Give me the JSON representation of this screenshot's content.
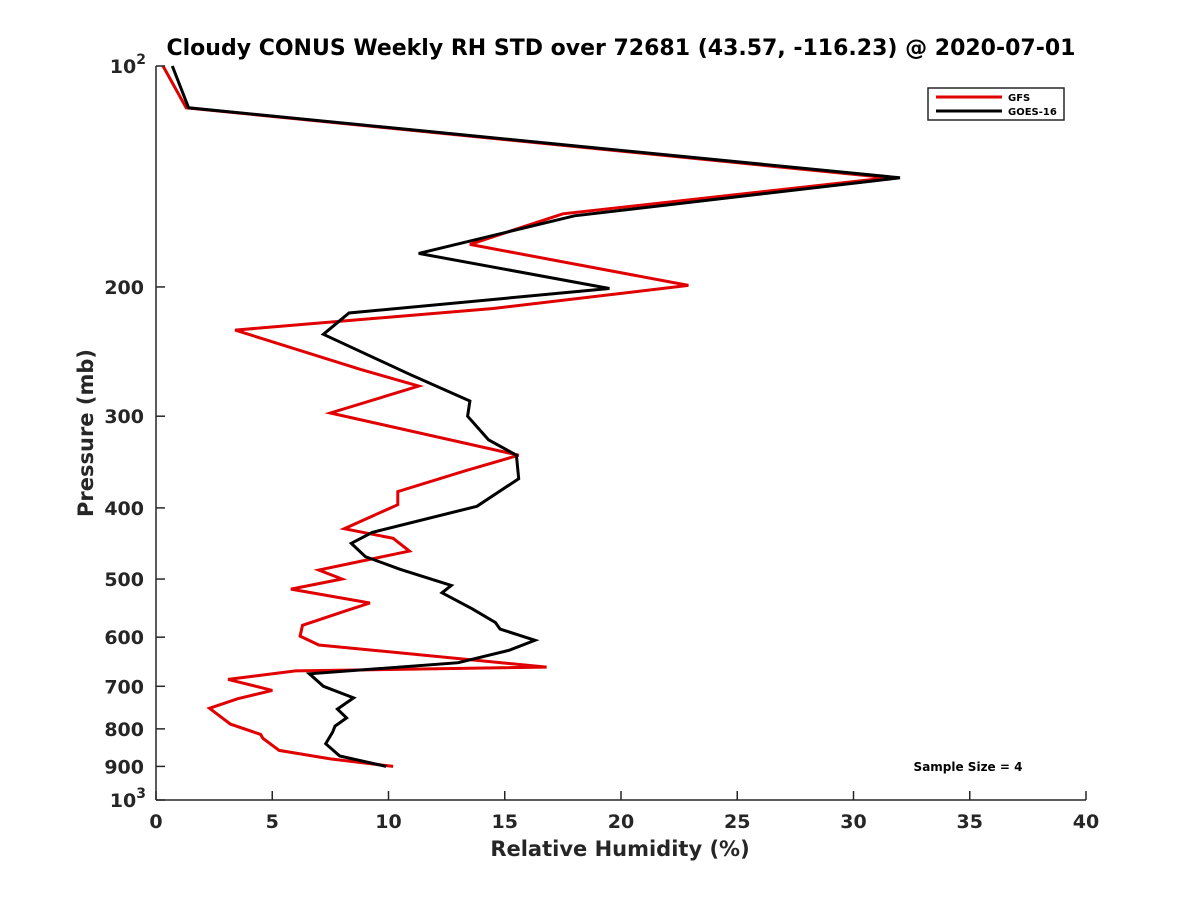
{
  "chart_data": {
    "type": "line",
    "title": "Cloudy CONUS Weekly RH STD over 72681 (43.57, -116.23) @ 2020-07-01",
    "xlabel": "Relative Humidity (%)",
    "ylabel": "Pressure (mb)",
    "xlim": [
      0,
      40
    ],
    "ylim": [
      100,
      1000
    ],
    "yscale": "log",
    "y_reversed": true,
    "x_ticks": [
      "0",
      "5",
      "10",
      "15",
      "20",
      "25",
      "30",
      "35",
      "40"
    ],
    "y_ticks": [
      {
        "value": 100,
        "label": "10",
        "sup": "2"
      },
      {
        "value": 200,
        "label": "200",
        "sup": ""
      },
      {
        "value": 300,
        "label": "300",
        "sup": ""
      },
      {
        "value": 400,
        "label": "400",
        "sup": ""
      },
      {
        "value": 500,
        "label": "500",
        "sup": ""
      },
      {
        "value": 600,
        "label": "600",
        "sup": ""
      },
      {
        "value": 700,
        "label": "700",
        "sup": ""
      },
      {
        "value": 800,
        "label": "800",
        "sup": ""
      },
      {
        "value": 900,
        "label": "900",
        "sup": ""
      },
      {
        "value": 1000,
        "label": "10",
        "sup": "3"
      }
    ],
    "legend_position": "top-right",
    "annotation": "Sample Size = 4",
    "series": [
      {
        "name": "GFS",
        "color": "#e00000",
        "points": [
          [
            0.3,
            100
          ],
          [
            1.3,
            114
          ],
          [
            31.5,
            142
          ],
          [
            17.5,
            159
          ],
          [
            13.5,
            175
          ],
          [
            22.9,
            199
          ],
          [
            14.5,
            214
          ],
          [
            3.4,
            229
          ],
          [
            8.8,
            259
          ],
          [
            11.3,
            273
          ],
          [
            7.5,
            297
          ],
          [
            15.6,
            339
          ],
          [
            13.3,
            356
          ],
          [
            10.4,
            380
          ],
          [
            10.4,
            396
          ],
          [
            8.1,
            427
          ],
          [
            10.2,
            440
          ],
          [
            10.9,
            458
          ],
          [
            7.0,
            486
          ],
          [
            8.0,
            500
          ],
          [
            5.8,
            516
          ],
          [
            9.2,
            539
          ],
          [
            8.2,
            552
          ],
          [
            6.3,
            578
          ],
          [
            6.2,
            598
          ],
          [
            7.0,
            615
          ],
          [
            16.8,
            659
          ],
          [
            6.0,
            667
          ],
          [
            3.1,
            685
          ],
          [
            5.0,
            709
          ],
          [
            3.5,
            728
          ],
          [
            2.3,
            750
          ],
          [
            3.2,
            788
          ],
          [
            4.5,
            814
          ],
          [
            4.6,
            824
          ],
          [
            5.3,
            856
          ],
          [
            7.5,
            879
          ],
          [
            10.2,
            900
          ]
        ]
      },
      {
        "name": "GOES-16",
        "color": "#000000",
        "points": [
          [
            0.7,
            100
          ],
          [
            1.4,
            114
          ],
          [
            32.0,
            142
          ],
          [
            18.0,
            160
          ],
          [
            11.3,
            180
          ],
          [
            19.5,
            201
          ],
          [
            8.3,
            217
          ],
          [
            7.2,
            232
          ],
          [
            10.9,
            263
          ],
          [
            13.5,
            286
          ],
          [
            13.4,
            300
          ],
          [
            14.3,
            323
          ],
          [
            15.5,
            339
          ],
          [
            15.6,
            365
          ],
          [
            13.8,
            398
          ],
          [
            9.3,
            432
          ],
          [
            8.4,
            447
          ],
          [
            9.0,
            466
          ],
          [
            10.5,
            485
          ],
          [
            12.7,
            510
          ],
          [
            12.3,
            522
          ],
          [
            13.6,
            549
          ],
          [
            14.6,
            573
          ],
          [
            14.8,
            585
          ],
          [
            16.3,
            606
          ],
          [
            15.2,
            625
          ],
          [
            13.0,
            650
          ],
          [
            6.6,
            673
          ],
          [
            7.2,
            700
          ],
          [
            8.5,
            726
          ],
          [
            7.8,
            752
          ],
          [
            8.2,
            773
          ],
          [
            7.7,
            793
          ],
          [
            7.6,
            808
          ],
          [
            7.3,
            838
          ],
          [
            7.9,
            871
          ],
          [
            9.9,
            900
          ]
        ]
      }
    ]
  }
}
